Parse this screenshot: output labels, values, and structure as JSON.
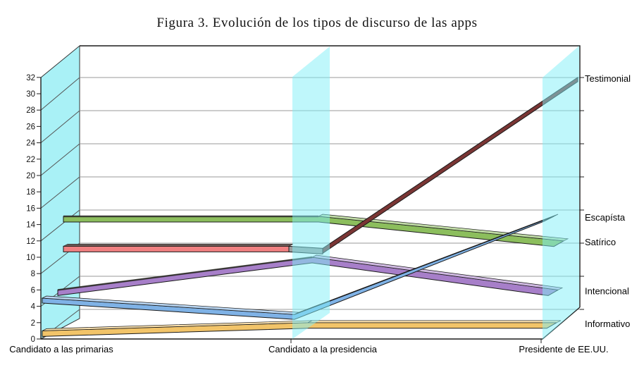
{
  "title": "Figura 3. Evolución de los tipos de discurso de las apps",
  "chart_data": {
    "type": "line",
    "style": "3d-ribbon",
    "categories": [
      "Candidato a las primarias",
      "Candidato a la presidencia",
      "Presidente de EE.UU."
    ],
    "series": [
      {
        "name": "Testimonial",
        "color": "#F08081",
        "steep_shade": "#7A3534",
        "values": [
          11,
          11,
          32
        ]
      },
      {
        "name": "Escapísta",
        "color": "#7FB2E6",
        "values": [
          5,
          3,
          15
        ]
      },
      {
        "name": "Satírico",
        "color": "#8CBE5D",
        "values": [
          15,
          15,
          12
        ]
      },
      {
        "name": "Intencional",
        "color": "#A77FC9",
        "values": [
          6,
          10,
          6
        ]
      },
      {
        "name": "Informativo",
        "color": "#F2C469",
        "values": [
          1,
          2,
          2
        ]
      }
    ],
    "ylim": [
      0,
      32
    ],
    "ytick_step": 2,
    "gridline_step": 4,
    "grid_on": true,
    "xlabel": "",
    "ylabel": "",
    "legend_position": "right-end-labels",
    "wall_color": "#A9F1F6",
    "slab_color": "#7FEFF7",
    "gridline_color": "#9A9A9A",
    "axis_color": "#1C1C1C"
  }
}
